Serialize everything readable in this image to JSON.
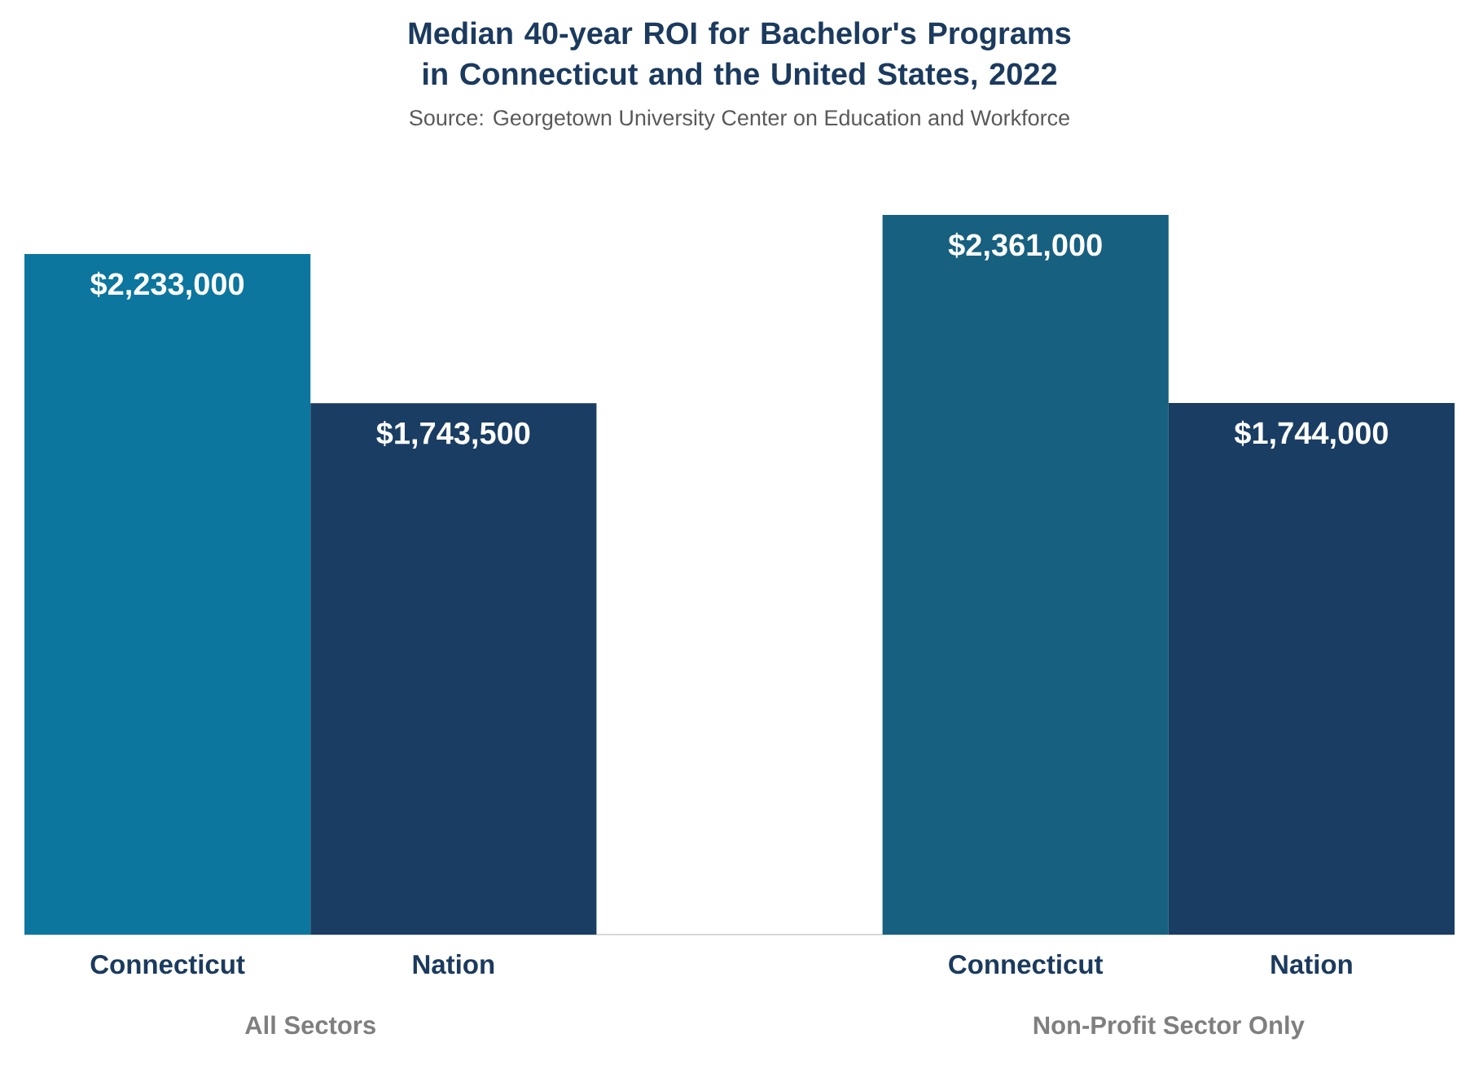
{
  "chart_data": {
    "type": "bar",
    "title": "Median 40-year ROI for Bachelor's Programs in Connecticut and the United States, 2022",
    "annotations": [
      "Source: Georgetown University Center on Education and Workforce",
      "All Sectors",
      "Non-Profit Sector Only"
    ],
    "categories": [
      "Connecticut",
      "Nation",
      null,
      "Connecticut",
      "Nation"
    ],
    "values": [
      2233000,
      1743500,
      null,
      2361000,
      1744000
    ],
    "colors": [
      "#0c769e",
      "#1a3d63",
      null,
      "#176080",
      "#1a3d63"
    ],
    "value_labels": [
      "$2,233,000",
      "$1,743,500",
      null,
      "$2,361,000",
      "$1,744,000"
    ]
  }
}
